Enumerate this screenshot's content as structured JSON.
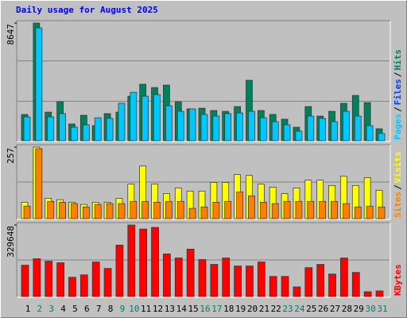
{
  "title": "Daily usage for August 2025",
  "chart_data": [
    {
      "type": "bar",
      "ylim": [
        0,
        8647
      ],
      "yticks": [
        8647
      ],
      "series": [
        {
          "color": "#00805c",
          "values": [
            1930,
            8647,
            2100,
            2860,
            1230,
            1870,
            1110,
            1990,
            2100,
            3270,
            4150,
            3910,
            4090,
            2860,
            2340,
            2390,
            2220,
            2160,
            2510,
            4440,
            2220,
            1930,
            1580,
            990,
            2510,
            1810,
            2160,
            2750,
            3330,
            2800,
            880
          ]
        },
        {
          "color": "#00c8ff",
          "values": [
            1750,
            8290,
            1750,
            1990,
            990,
            1170,
            1690,
            1640,
            2750,
            3560,
            3270,
            3390,
            2570,
            2160,
            2340,
            1930,
            1810,
            1990,
            2040,
            2160,
            1690,
            1400,
            1170,
            700,
            1810,
            1640,
            1400,
            2160,
            1810,
            1110,
            530
          ]
        }
      ],
      "legend": [
        {
          "text": "Pages",
          "color": "#00c8ff"
        },
        {
          "text": "/",
          "color": "#000000"
        },
        {
          "text": "Files",
          "color": "#0040ff"
        },
        {
          "text": "/",
          "color": "#000000"
        },
        {
          "text": "Hits",
          "color": "#00805c"
        }
      ]
    },
    {
      "type": "bar",
      "ylim": [
        0,
        257
      ],
      "yticks": [
        257
      ],
      "series": [
        {
          "color": "#ffff00",
          "values": [
            59,
            257,
            73,
            68,
            59,
            51,
            59,
            59,
            73,
            124,
            189,
            124,
            90,
            110,
            99,
            99,
            130,
            130,
            158,
            155,
            124,
            113,
            90,
            110,
            138,
            138,
            119,
            152,
            119,
            147,
            102
          ]
        },
        {
          "color": "#ff8000",
          "values": [
            45,
            251,
            62,
            59,
            54,
            42,
            51,
            54,
            54,
            62,
            62,
            59,
            62,
            62,
            37,
            42,
            59,
            62,
            96,
            82,
            59,
            54,
            62,
            62,
            62,
            62,
            62,
            54,
            42,
            45,
            42
          ]
        }
      ],
      "legend": [
        {
          "text": "Sites",
          "color": "#ff8000"
        },
        {
          "text": "/",
          "color": "#000000"
        },
        {
          "text": "Visits",
          "color": "#ffff00"
        }
      ]
    },
    {
      "type": "bar",
      "ylim": [
        0,
        329648
      ],
      "yticks": [
        329648
      ],
      "series": [
        {
          "color": "#ff0000",
          "values": [
            144500,
            174100,
            163000,
            155600,
            88900,
            100000,
            159300,
            129600,
            237100,
            329648,
            311100,
            318500,
            196300,
            177800,
            218500,
            170400,
            148200,
            177800,
            140800,
            140800,
            159300,
            92600,
            92600,
            44400,
            133300,
            148200,
            103700,
            177800,
            111100,
            22200,
            25900
          ]
        }
      ],
      "legend": [
        {
          "text": "KBytes",
          "color": "#ff0000"
        }
      ],
      "categories": [
        "1",
        "2",
        "3",
        "4",
        "5",
        "6",
        "7",
        "8",
        "9",
        "10",
        "11",
        "12",
        "13",
        "14",
        "15",
        "16",
        "17",
        "18",
        "19",
        "20",
        "21",
        "22",
        "23",
        "24",
        "25",
        "26",
        "27",
        "28",
        "29",
        "30",
        "31"
      ],
      "category_colors": [
        "#000000",
        "#00805c",
        "#00805c",
        "#000000",
        "#000000",
        "#000000",
        "#000000",
        "#000000",
        "#00805c",
        "#00805c",
        "#000000",
        "#000000",
        "#000000",
        "#000000",
        "#000000",
        "#00805c",
        "#00805c",
        "#000000",
        "#000000",
        "#000000",
        "#000000",
        "#000000",
        "#00805c",
        "#00805c",
        "#000000",
        "#000000",
        "#000000",
        "#000000",
        "#000000",
        "#00805c",
        "#00805c"
      ]
    }
  ]
}
